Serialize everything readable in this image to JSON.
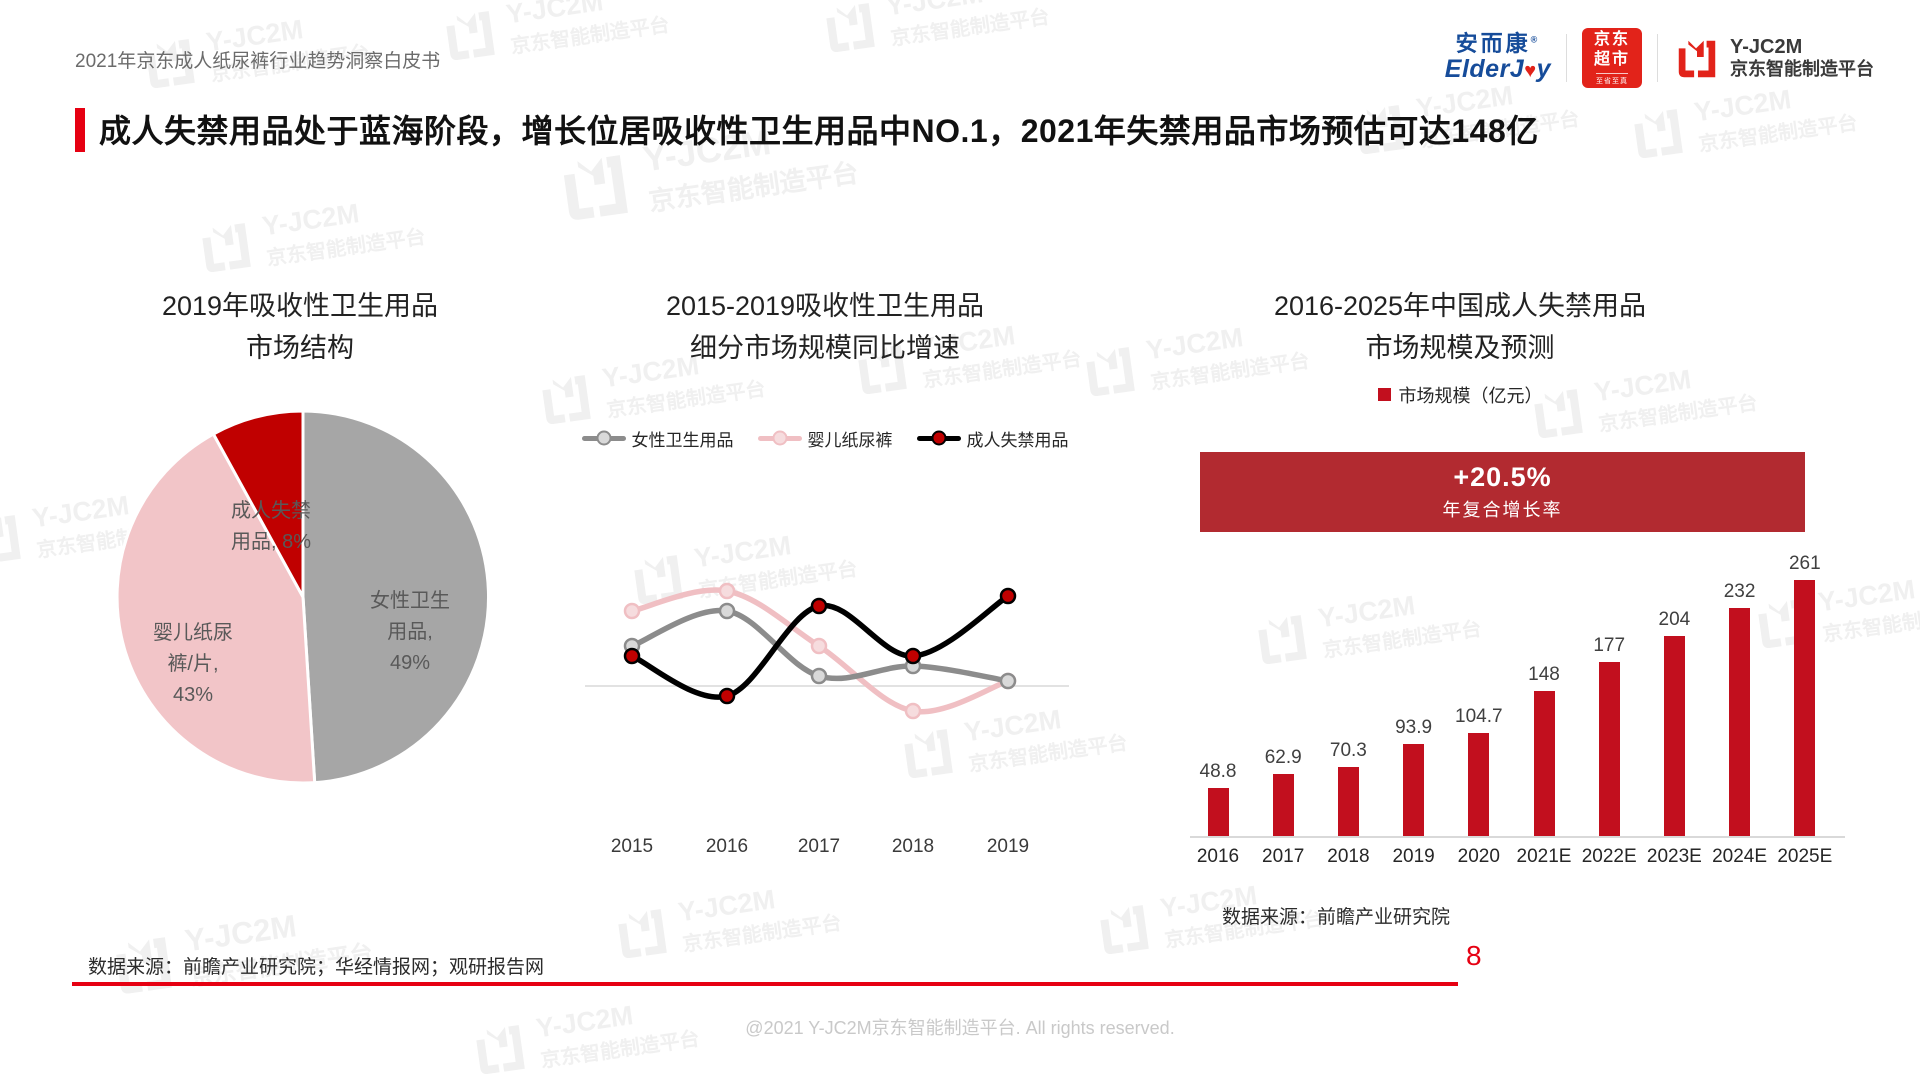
{
  "page": {
    "header_left": "2021年京东成人纸尿裤行业趋势洞察白皮书",
    "title": "成人失禁用品处于蓝海阶段，增长位居吸收性卫生用品中NO.1，2021年失禁用品市场预估可达148亿",
    "accent_color": "#e60012",
    "source_left": "数据来源：前瞻产业研究院；华经情报网；观研报告网",
    "source_right": "数据来源：前瞻产业研究院",
    "page_number": "8",
    "footer": "@2021 Y-JC2M京东智能制造平台. All rights reserved.",
    "watermark": {
      "line1": "Y-JC2M",
      "line2": "京东智能制造平台"
    }
  },
  "logos": {
    "elderjoy_cn": "安而康",
    "elderjoy_reg": "®",
    "elderjoy_en_left": "ElderJ",
    "elderjoy_heart": "♥",
    "elderjoy_en_right": "y",
    "jd_line1": "京东",
    "jd_line2": "超市",
    "jd_line3": "至省至真",
    "jc2m_line1": "Y-JC2M",
    "jc2m_line2": "京东智能制造平台"
  },
  "chart_data": [
    {
      "type": "pie",
      "title_lines": [
        "2019年吸收性卫生用品",
        "市场结构"
      ],
      "label_color": "#595959",
      "clockwise_from_top": true,
      "slices": [
        {
          "label": "女性卫生用品",
          "value": 49,
          "color": "#a6a6a6",
          "label_lines": [
            "女性卫生",
            "用品,",
            "49%"
          ],
          "label_pos": [
            297,
            200
          ]
        },
        {
          "label": "婴儿纸尿裤/片",
          "value": 43,
          "color": "#f2c5c8",
          "label_lines": [
            "婴儿纸尿",
            "裤/片,",
            "43%"
          ],
          "label_pos": [
            80,
            232
          ]
        },
        {
          "label": "成人失禁用品",
          "value": 8,
          "color": "#c00000",
          "label_lines": [
            "成人失禁",
            "用品, 8%"
          ],
          "label_pos": [
            158,
            110
          ]
        }
      ]
    },
    {
      "type": "line",
      "title_lines": [
        "2015-2019吸收性卫生用品",
        "细分市场规模同比增速"
      ],
      "x": [
        "2015",
        "2016",
        "2017",
        "2018",
        "2019"
      ],
      "note": "y轴未标注刻度，数值为按像素估算的同比增速（%）；0轴为图中灰色横线",
      "baseline": 0,
      "series": [
        {
          "name": "女性卫生用品",
          "color": "#8c8c8c",
          "marker_fill": "#d9d9d9",
          "values": [
            8,
            15,
            2,
            4,
            1
          ],
          "draw": 1
        },
        {
          "name": "婴儿纸尿裤",
          "color": "#f0bfc3",
          "marker_fill": "#f6dcde",
          "values": [
            15,
            19,
            8,
            -5,
            1
          ],
          "draw": 0
        },
        {
          "name": "成人失禁用品",
          "color": "#000000",
          "marker_fill": "#c00000",
          "values": [
            6,
            -2,
            16,
            6,
            18
          ],
          "draw": 2
        }
      ]
    },
    {
      "type": "bar",
      "title_lines": [
        "2016-2025年中国成人失禁用品",
        "市场规模及预测"
      ],
      "legend_label": "市场规模（亿元）",
      "bar_color": "#c20f1e",
      "cagr": {
        "value": "+20.5%",
        "label": "年复合增长率",
        "banner_color": "#b22a30"
      },
      "categories": [
        "2016",
        "2017",
        "2018",
        "2019",
        "2020",
        "2021E",
        "2022E",
        "2023E",
        "2024E",
        "2025E"
      ],
      "values": [
        48.8,
        62.9,
        70.3,
        93.9,
        104.7,
        148,
        177,
        204,
        232,
        261
      ],
      "ylim": [
        0,
        270
      ],
      "source": "数据来源：前瞻产业研究院"
    }
  ]
}
